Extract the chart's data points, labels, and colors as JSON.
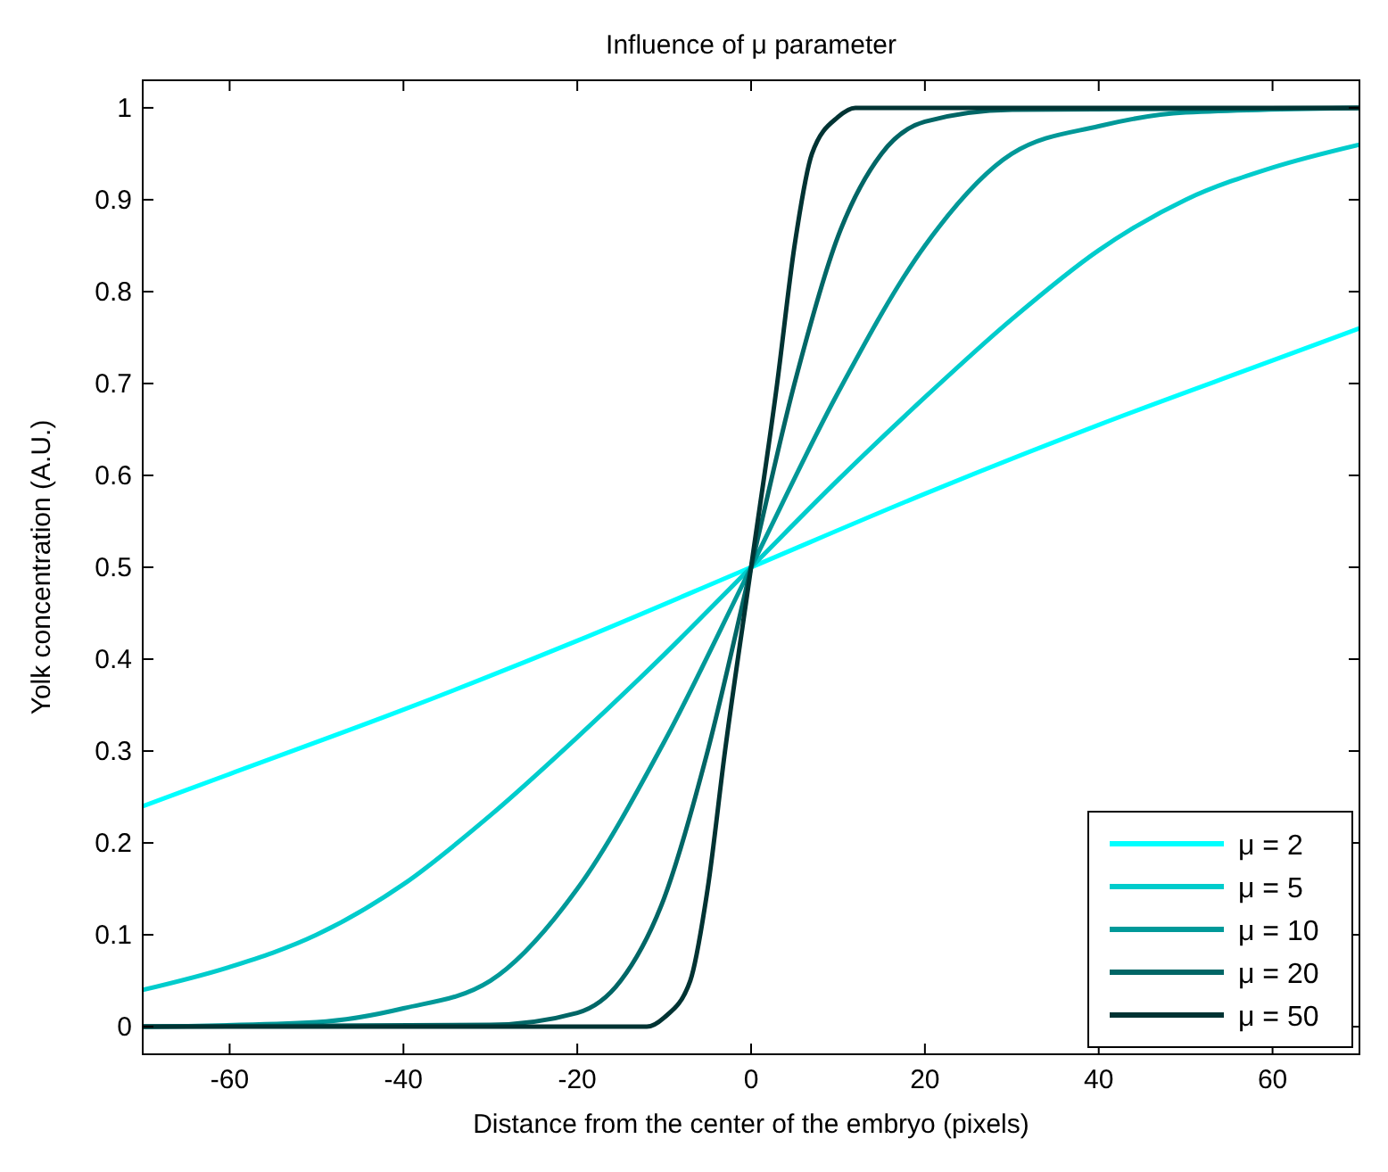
{
  "chart_data": {
    "type": "line",
    "title": "Influence of μ parameter",
    "xlabel": "Distance from the center of the embryo (pixels)",
    "ylabel": "Yolk concentration (A.U.)",
    "xlim": [
      -70,
      70
    ],
    "ylim": [
      -0.03,
      1.03
    ],
    "xticks": [
      -60,
      -40,
      -20,
      0,
      20,
      40,
      60
    ],
    "yticks": [
      0,
      0.1,
      0.2,
      0.3,
      0.4,
      0.5,
      0.6,
      0.7,
      0.8,
      0.9,
      1
    ],
    "grid": false,
    "legend": "bottom right",
    "line_style": "solid",
    "marker": "none",
    "series": [
      {
        "name": "μ = 2",
        "color": "#00ffff",
        "x": [
          -70,
          -60,
          -40,
          -20,
          0,
          20,
          40,
          60,
          70
        ],
        "values": [
          0.24,
          0.275,
          0.345,
          0.42,
          0.5,
          0.58,
          0.655,
          0.725,
          0.76
        ]
      },
      {
        "name": "μ = 5",
        "color": "#00cccc",
        "x": [
          -70,
          -60,
          -50,
          -40,
          -30,
          -20,
          -10,
          0,
          10,
          20,
          30,
          40,
          50,
          60,
          70
        ],
        "values": [
          0.04,
          0.065,
          0.1,
          0.155,
          0.23,
          0.315,
          0.405,
          0.5,
          0.595,
          0.685,
          0.77,
          0.845,
          0.9,
          0.935,
          0.96
        ]
      },
      {
        "name": "μ = 10",
        "color": "#009999",
        "x": [
          -70,
          -50,
          -40,
          -30,
          -20,
          -10,
          0,
          10,
          20,
          30,
          40,
          50,
          70
        ],
        "values": [
          0,
          0.005,
          0.02,
          0.05,
          0.15,
          0.31,
          0.5,
          0.69,
          0.85,
          0.95,
          0.98,
          0.995,
          1
        ]
      },
      {
        "name": "μ = 20",
        "color": "#006666",
        "x": [
          -70,
          -30,
          -20,
          -15,
          -10,
          -5,
          0,
          5,
          10,
          15,
          20,
          30,
          70
        ],
        "values": [
          0,
          0.002,
          0.015,
          0.05,
          0.14,
          0.3,
          0.5,
          0.7,
          0.86,
          0.95,
          0.985,
          0.998,
          1
        ]
      },
      {
        "name": "μ = 50",
        "color": "#003333",
        "x": [
          -70,
          -12,
          -10,
          -7,
          -5,
          -3,
          0,
          3,
          5,
          7,
          10,
          12,
          70
        ],
        "values": [
          0,
          0,
          0.01,
          0.05,
          0.15,
          0.3,
          0.5,
          0.7,
          0.85,
          0.95,
          0.99,
          1,
          1
        ]
      }
    ]
  }
}
